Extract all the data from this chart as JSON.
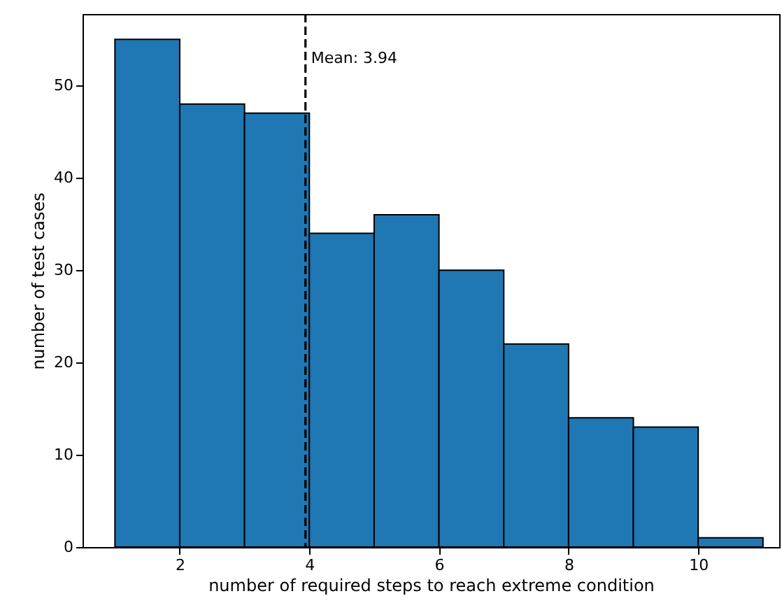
{
  "chart_data": {
    "type": "histogram",
    "xlabel": "number of required steps to reach extreme condition",
    "ylabel": "number of test cases",
    "bins": [
      1,
      2,
      3,
      4,
      5,
      6,
      7,
      8,
      9,
      10,
      11
    ],
    "values": [
      55,
      48,
      47,
      34,
      36,
      30,
      22,
      14,
      13,
      1
    ],
    "color": "#1f77b4",
    "xlim": [
      0.5,
      11.25
    ],
    "ylim": [
      0,
      57.75
    ],
    "xticks": [
      2,
      4,
      6,
      8,
      10
    ],
    "yticks": [
      0,
      10,
      20,
      30,
      40,
      50
    ],
    "ref_lines": [
      {
        "axis": "x",
        "value": 3.94,
        "label": "Mean: 3.94",
        "color": "#000000",
        "line_style": "dashed"
      }
    ],
    "grid": false
  }
}
